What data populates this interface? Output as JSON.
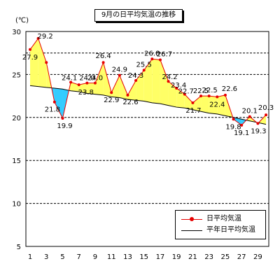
{
  "chart_data": {
    "type": "line",
    "title": "9月の日平均気温の推移",
    "ylabel": "(℃)",
    "ylim": [
      5,
      30
    ],
    "yticks": [
      5,
      10,
      15,
      20,
      25,
      30
    ],
    "xlim": [
      1,
      30
    ],
    "xticks": [
      1,
      3,
      5,
      7,
      9,
      11,
      13,
      15,
      17,
      19,
      21,
      23,
      25,
      27,
      29
    ],
    "dashed_gridlines": [
      10,
      15,
      20,
      25,
      27.5
    ],
    "x": [
      1,
      2,
      3,
      4,
      5,
      6,
      7,
      8,
      9,
      10,
      11,
      12,
      13,
      14,
      15,
      16,
      17,
      18,
      19,
      20,
      21,
      22,
      23,
      24,
      25,
      26,
      27,
      28,
      29,
      30
    ],
    "legend_position": "bottom-right",
    "fill_colors": {
      "above": "#ffff66",
      "below": "#33ccff"
    },
    "series": [
      {
        "name": "日平均気温",
        "color": "#e60000",
        "marker": "circle",
        "values": [
          27.9,
          29.2,
          26.4,
          21.8,
          19.9,
          24.1,
          23.8,
          24.0,
          24.0,
          26.4,
          22.9,
          24.9,
          22.6,
          24.3,
          25.5,
          26.8,
          26.7,
          24.2,
          23.4,
          22.7,
          21.7,
          22.5,
          22.5,
          22.4,
          22.6,
          19.8,
          19.1,
          20.1,
          19.3,
          20.3
        ],
        "data_labels": [
          "27.9",
          "29.2",
          "",
          "21.8",
          "19.9",
          "24.1",
          "23.8",
          "24.0",
          "24.0",
          "26.4",
          "22.9",
          "24.9",
          "22.6",
          "24.3",
          "25.5",
          "26.8",
          "26.7",
          "24.2",
          "23.4",
          "22.7",
          "21.7",
          "22.5",
          "22.5",
          "22.4",
          "22.6",
          "19.8",
          "19.1",
          "20.1",
          "19.3",
          "20.3"
        ]
      },
      {
        "name": "平年日平均気温",
        "color": "#000000",
        "marker": "none",
        "values": [
          23.7,
          23.6,
          23.5,
          23.4,
          23.3,
          23.1,
          23.0,
          22.8,
          22.7,
          22.6,
          22.4,
          22.3,
          22.1,
          22.0,
          21.9,
          21.7,
          21.6,
          21.4,
          21.2,
          21.1,
          20.9,
          20.7,
          20.5,
          20.4,
          20.2,
          20.0,
          19.8,
          19.6,
          19.4,
          19.2
        ]
      }
    ]
  }
}
